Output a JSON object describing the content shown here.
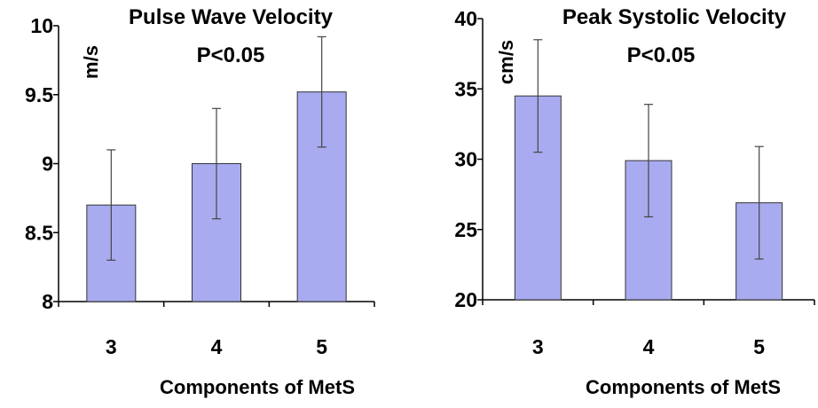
{
  "chart_data": [
    {
      "type": "bar",
      "title": "Pulse Wave Velocity",
      "subtitle": "P<0.05",
      "xlabel": "Components of MetS",
      "ylabel": "m/s",
      "categories": [
        "3",
        "4",
        "5"
      ],
      "values": [
        8.7,
        9.0,
        9.52
      ],
      "error": [
        0.4,
        0.4,
        0.4
      ],
      "ylim": [
        8,
        10
      ],
      "yticks": [
        "8",
        "8.5",
        "9",
        "9.5",
        "10"
      ],
      "bar_color": "#a9abf0",
      "grid": false
    },
    {
      "type": "bar",
      "title": "Peak Systolic Velocity",
      "subtitle": "P<0.05",
      "xlabel": "Components of MetS",
      "ylabel": "cm/s",
      "categories": [
        "3",
        "4",
        "5"
      ],
      "values": [
        34.5,
        29.9,
        26.9
      ],
      "error": [
        4.0,
        4.0,
        4.0
      ],
      "ylim": [
        20,
        40
      ],
      "yticks": [
        "20",
        "25",
        "30",
        "35",
        "40"
      ],
      "bar_color": "#a9abf0",
      "grid": false
    }
  ]
}
